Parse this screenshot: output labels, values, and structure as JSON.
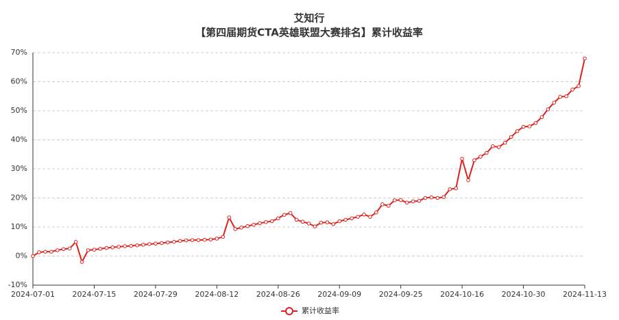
{
  "chart_data": {
    "type": "line",
    "title": "艾知行",
    "subtitle": "【第四届期货CTA英雄联盟大赛排名】累计收益率",
    "categories": [
      "2024-07-01",
      null,
      null,
      null,
      null,
      null,
      null,
      null,
      null,
      null,
      "2024-07-15",
      null,
      null,
      null,
      null,
      null,
      null,
      null,
      null,
      null,
      "2024-07-29",
      null,
      null,
      null,
      null,
      null,
      null,
      null,
      null,
      null,
      "2024-08-12",
      null,
      null,
      null,
      null,
      null,
      null,
      null,
      null,
      null,
      "2024-08-26",
      null,
      null,
      null,
      null,
      null,
      null,
      null,
      null,
      null,
      "2024-09-09",
      null,
      null,
      null,
      null,
      null,
      null,
      null,
      null,
      null,
      "2024-09-25",
      null,
      null,
      null,
      null,
      null,
      null,
      null,
      null,
      null,
      "2024-10-16",
      null,
      null,
      null,
      null,
      null,
      null,
      null,
      null,
      null,
      "2024-10-30",
      null,
      null,
      null,
      null,
      null,
      null,
      null,
      null,
      null,
      "2024-11-13"
    ],
    "series": [
      {
        "name": "累计收益率",
        "color": "#e0201b",
        "values": [
          0,
          1.3,
          1.5,
          1.5,
          2.0,
          2.4,
          2.6,
          4.9,
          -2.0,
          2.0,
          2.2,
          2.5,
          2.8,
          3.0,
          3.2,
          3.4,
          3.5,
          3.7,
          3.9,
          4.1,
          4.3,
          4.5,
          4.7,
          4.9,
          5.2,
          5.4,
          5.5,
          5.5,
          5.6,
          5.7,
          6.0,
          6.6,
          13.3,
          9.3,
          9.8,
          10.3,
          10.8,
          11.3,
          11.7,
          12.0,
          13.0,
          14.2,
          14.8,
          12.5,
          11.8,
          11.2,
          10.2,
          11.5,
          11.6,
          11.0,
          12.0,
          12.5,
          13.0,
          13.5,
          14.3,
          13.5,
          15.0,
          17.8,
          17.3,
          19.2,
          19.3,
          18.4,
          18.8,
          19.0,
          20.0,
          20.2,
          20.0,
          20.3,
          23.0,
          23.3,
          33.5,
          26.1,
          33.0,
          34.2,
          35.5,
          37.8,
          37.5,
          39.0,
          41.0,
          43.0,
          44.5,
          44.6,
          45.8,
          47.8,
          50.5,
          52.8,
          54.8,
          55.0,
          57.3,
          58.5,
          68.0
        ]
      }
    ],
    "ylim": [
      -10,
      70
    ],
    "yticks": [
      {
        "value": -10,
        "label": "-10%"
      },
      {
        "value": 0,
        "label": "0%"
      },
      {
        "value": 10,
        "label": "10%"
      },
      {
        "value": 20,
        "label": "20%"
      },
      {
        "value": 30,
        "label": "30%"
      },
      {
        "value": 40,
        "label": "40%"
      },
      {
        "value": 50,
        "label": "50%"
      },
      {
        "value": 60,
        "label": "60%"
      },
      {
        "value": 70,
        "label": "70%"
      }
    ],
    "grid": true,
    "legend": "bottom"
  }
}
